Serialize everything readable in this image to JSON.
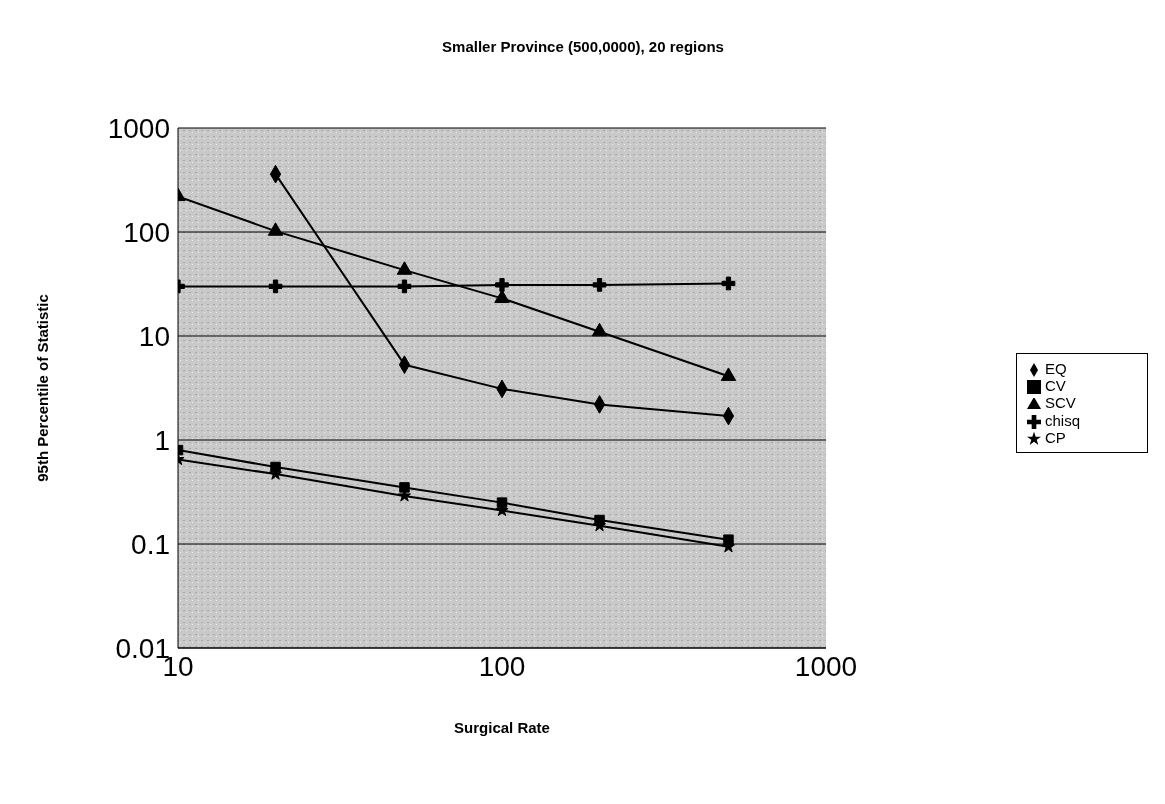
{
  "chart_data": {
    "type": "line",
    "title": "Smaller Province (500,0000), 20 regions",
    "xlabel": "Surgical Rate",
    "ylabel": "95th Percentile of Statistic",
    "x": [
      10,
      20,
      50,
      100,
      200,
      500
    ],
    "series": [
      {
        "name": "EQ",
        "color": "#000000",
        "marker": "diamond",
        "values": [
          null,
          360,
          5.3,
          3.1,
          2.2,
          1.7
        ]
      },
      {
        "name": "CV",
        "color": "#000000",
        "marker": "square",
        "values": [
          0.8,
          0.55,
          0.35,
          0.25,
          0.17,
          0.11
        ]
      },
      {
        "name": "SCV",
        "color": "#000000",
        "marker": "triangle",
        "values": [
          220,
          102,
          43,
          23,
          11,
          4.1
        ]
      },
      {
        "name": "chisq",
        "color": "#000000",
        "marker": "cross",
        "values": [
          30,
          30,
          30,
          31,
          31,
          32
        ]
      },
      {
        "name": "CP",
        "color": "#000000",
        "marker": "star",
        "values": [
          0.65,
          0.47,
          0.29,
          0.21,
          0.15,
          0.094
        ]
      }
    ],
    "log": "xy",
    "xlim": [
      10,
      1000
    ],
    "xticks": [
      10,
      100,
      1000
    ],
    "ylim": [
      0.01,
      1000
    ],
    "yticks": [
      0.01,
      0.1,
      1,
      10,
      100,
      1000
    ],
    "grid": "y",
    "legend": "right",
    "line_style": "solid"
  }
}
